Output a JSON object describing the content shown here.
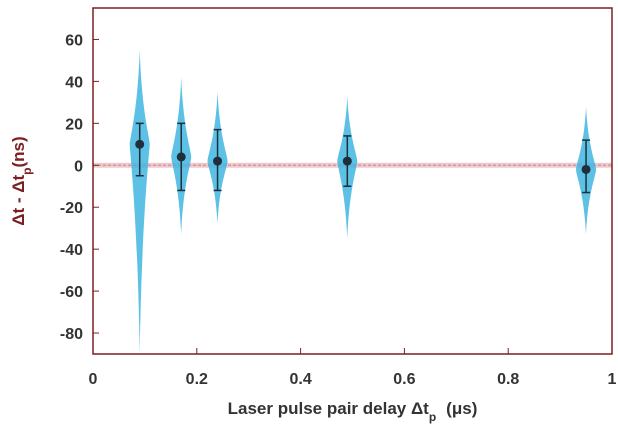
{
  "chart_data": {
    "type": "scatter",
    "title": "",
    "xlabel": "Laser pulse pair delay Δt",
    "xlabel_sub": "p",
    "xlabel_unit": "(μs)",
    "ylabel": "Δt - Δt",
    "ylabel_sub": "p",
    "ylabel_unit": "(ns)",
    "xlim": [
      0,
      1
    ],
    "ylim": [
      -90,
      75
    ],
    "xticks": [
      "0",
      "0.2",
      "0.4",
      "0.6",
      "0.8",
      "1"
    ],
    "xtick_values": [
      0,
      0.2,
      0.4,
      0.6,
      0.8,
      1
    ],
    "yticks": [
      "60",
      "40",
      "20",
      "0",
      "-20",
      "-40",
      "-60",
      "-80"
    ],
    "ytick_values": [
      60,
      40,
      20,
      0,
      -20,
      -40,
      -60,
      -80
    ],
    "grid": false,
    "reference_line": {
      "y": 0,
      "color": "#d98a95"
    },
    "violin_color": "#3fb6e0",
    "point_color": "#1f2f3a",
    "violins": [
      {
        "x": 0.09,
        "y_min": -90,
        "y_max": 55,
        "mean": 10,
        "err_low": -5,
        "err_high": 20
      },
      {
        "x": 0.17,
        "y_min": -33,
        "y_max": 42,
        "mean": 4,
        "err_low": -12,
        "err_high": 20
      },
      {
        "x": 0.24,
        "y_min": -28,
        "y_max": 35,
        "mean": 2,
        "err_low": -12,
        "err_high": 17
      },
      {
        "x": 0.49,
        "y_min": -35,
        "y_max": 33,
        "mean": 2,
        "err_low": -10,
        "err_high": 14
      },
      {
        "x": 0.95,
        "y_min": -33,
        "y_max": 28,
        "mean": -2,
        "err_low": -13,
        "err_high": 12
      }
    ]
  }
}
